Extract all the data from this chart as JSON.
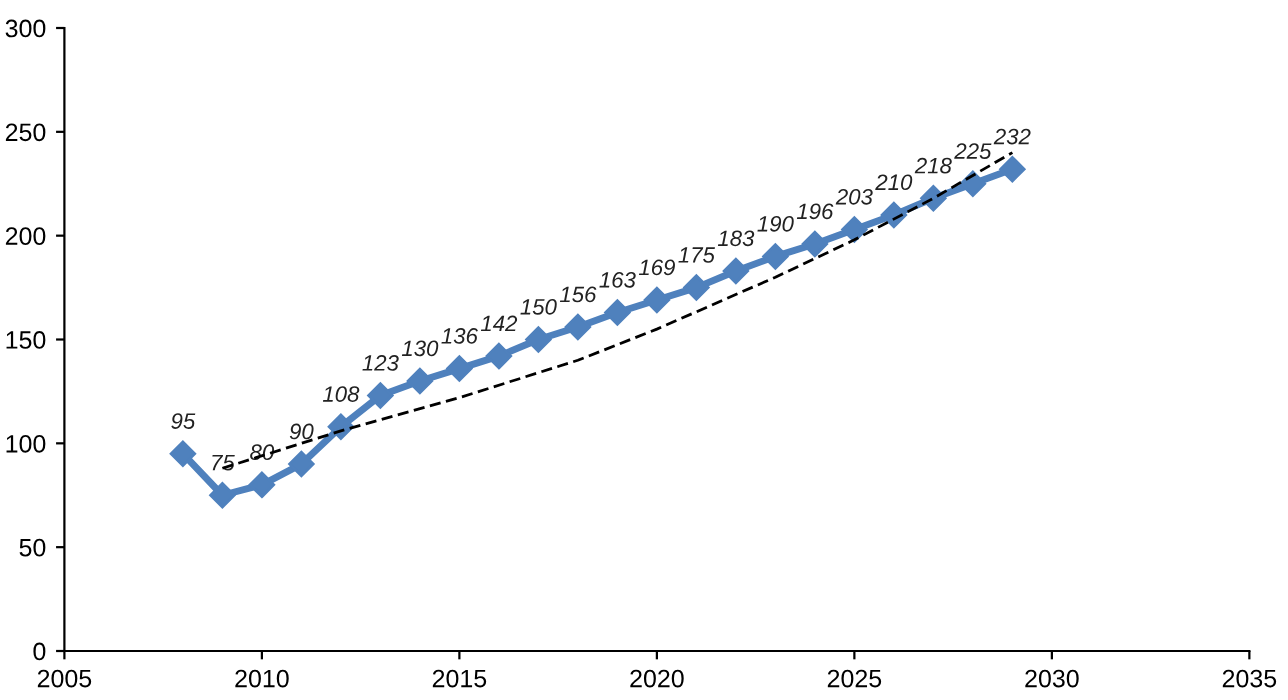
{
  "chart_data": {
    "type": "line",
    "xlim": [
      2005,
      2035
    ],
    "xticks": [
      2005,
      2010,
      2015,
      2020,
      2025,
      2030,
      2035
    ],
    "ylim": [
      0,
      300
    ],
    "yticks": [
      0,
      50,
      100,
      150,
      200,
      250,
      300
    ],
    "grid": false,
    "legend": false,
    "series": [
      {
        "color": "#4f81bd",
        "marker": "diamond",
        "line_style": "solid",
        "x": [
          2008,
          2009,
          2010,
          2011,
          2012,
          2013,
          2014,
          2015,
          2016,
          2017,
          2018,
          2019,
          2020,
          2021,
          2022,
          2023,
          2024,
          2025,
          2026,
          2027,
          2028,
          2029
        ],
        "values": [
          95,
          75,
          80,
          90,
          108,
          123,
          130,
          136,
          142,
          150,
          156,
          163,
          169,
          175,
          183,
          190,
          196,
          203,
          210,
          218,
          225,
          232
        ],
        "value_labels": [
          "95",
          "75",
          "80",
          "90",
          "108",
          "123",
          "130",
          "136",
          "142",
          "150",
          "156",
          "163",
          "169",
          "175",
          "183",
          "190",
          "196",
          "203",
          "210",
          "218",
          "225",
          "232"
        ]
      },
      {
        "type": "line",
        "color": "#000000",
        "marker": "none",
        "line_style": "dashed",
        "x": [
          2009,
          2012,
          2015,
          2018,
          2020,
          2023,
          2025,
          2027,
          2029
        ],
        "values": [
          88,
          106,
          122,
          140,
          155,
          180,
          198,
          218,
          240
        ]
      }
    ]
  }
}
